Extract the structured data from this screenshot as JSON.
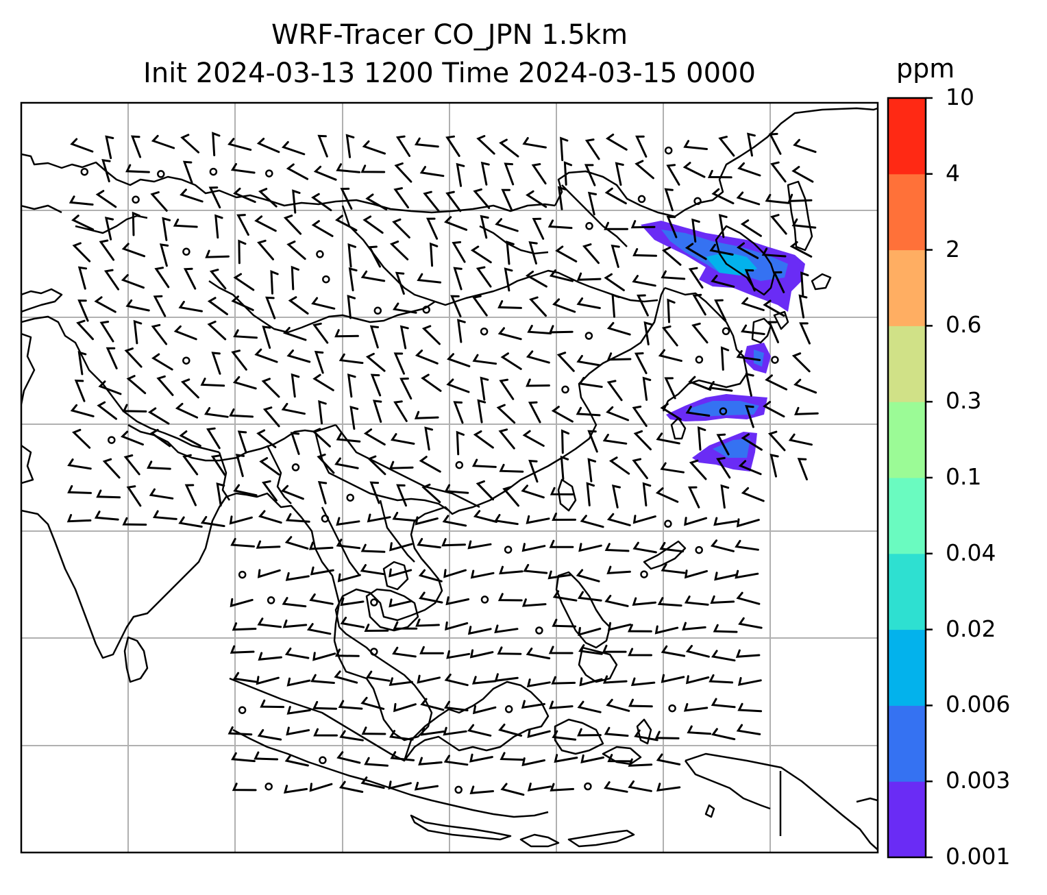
{
  "title": {
    "line1": "WRF-Tracer CO_JPN 1.5km",
    "line2": "Init 2024-03-13 1200 Time 2024-03-15 0000"
  },
  "colorbar": {
    "unit": "ppm",
    "levels": [
      "0.001",
      "0.003",
      "0.006",
      "0.02",
      "0.04",
      "0.1",
      "0.3",
      "0.6",
      "2",
      "4",
      "10"
    ],
    "colors": [
      "#6a2cf5",
      "#3572f2",
      "#03b2ec",
      "#2ee0d1",
      "#6afbc0",
      "#9bfb96",
      "#d0e187",
      "#ffae62",
      "#ff7139",
      "#ff2914"
    ]
  },
  "map": {
    "field": "CO tracer concentration",
    "gridlines": true,
    "wind_barbs": true,
    "plume_color_ranges": [
      "0.001",
      "0.003",
      "0.006",
      "0.02"
    ]
  }
}
